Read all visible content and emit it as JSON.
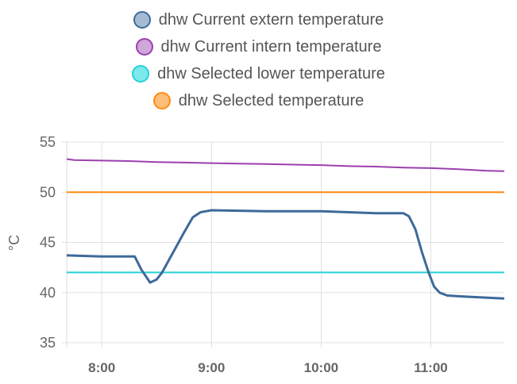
{
  "chart_data": {
    "type": "line",
    "title": "",
    "xlabel": "",
    "ylabel": "°C",
    "ylim": [
      35,
      55
    ],
    "xlim": [
      7.68,
      11.67
    ],
    "yticks": [
      "35",
      "40",
      "45",
      "50",
      "55"
    ],
    "ytick_values": [
      35,
      40,
      45,
      50,
      55
    ],
    "xticks": [
      "8:00",
      "9:00",
      "10:00",
      "11:00"
    ],
    "xtick_values": [
      8,
      9,
      10,
      11
    ],
    "grid": true,
    "legend_position": "top",
    "series": [
      {
        "name": "dhw Current extern temperature",
        "color": "#3d6a99",
        "fill": "#a5bbd2",
        "x": [
          7.68,
          8.0,
          8.3,
          8.36,
          8.44,
          8.5,
          8.55,
          8.65,
          8.75,
          8.83,
          8.9,
          9.0,
          9.5,
          10.0,
          10.5,
          10.75,
          10.8,
          10.86,
          10.92,
          10.98,
          11.03,
          11.08,
          11.15,
          11.3,
          11.5,
          11.67
        ],
        "y": [
          43.7,
          43.6,
          43.6,
          42.3,
          41.0,
          41.3,
          42.0,
          44.0,
          46.0,
          47.5,
          48.0,
          48.2,
          48.1,
          48.1,
          47.9,
          47.9,
          47.6,
          46.3,
          44.0,
          42.0,
          40.6,
          40.0,
          39.7,
          39.6,
          39.5,
          39.4
        ]
      },
      {
        "name": "dhw Current intern temperature",
        "color": "#9c3fae",
        "fill": "#cfa7d8",
        "x": [
          7.68,
          7.75,
          8.0,
          8.25,
          8.5,
          8.75,
          9.0,
          9.25,
          9.5,
          9.75,
          10.0,
          10.25,
          10.5,
          10.75,
          11.0,
          11.25,
          11.5,
          11.67
        ],
        "y": [
          53.3,
          53.2,
          53.15,
          53.1,
          53.0,
          52.95,
          52.9,
          52.85,
          52.8,
          52.75,
          52.7,
          52.6,
          52.55,
          52.45,
          52.4,
          52.3,
          52.15,
          52.1
        ]
      },
      {
        "name": "dhw Selected lower temperature",
        "color": "#23d2d7",
        "fill": "#7ce9ec",
        "x": [
          7.68,
          11.67
        ],
        "y": [
          42,
          42
        ]
      },
      {
        "name": "dhw Selected temperature",
        "color": "#ff8a10",
        "fill": "#ffbd7a",
        "x": [
          7.68,
          11.67
        ],
        "y": [
          50,
          50
        ]
      }
    ]
  }
}
